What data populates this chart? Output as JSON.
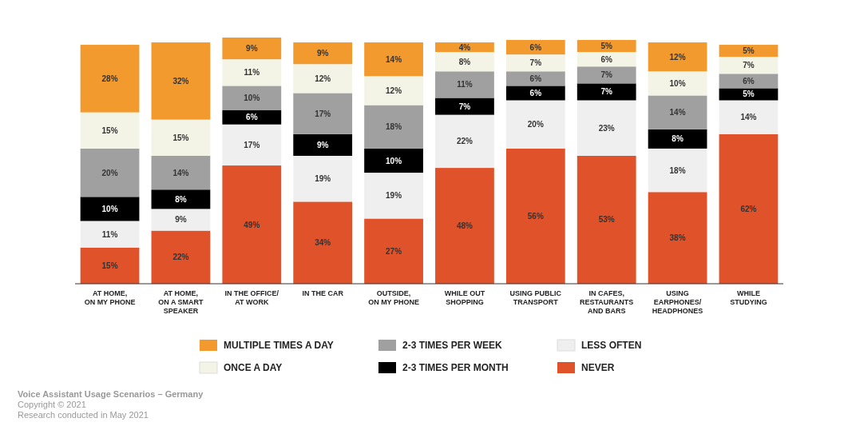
{
  "chart_data": {
    "type": "bar",
    "stacked": true,
    "legend": "bottom",
    "ylim": [
      0,
      102
    ],
    "tick_labels": "x",
    "categories": [
      "AT HOME,\nON MY PHONE",
      "AT HOME,\nON A SMART\nSPEAKER",
      "IN THE OFFICE/\nAT WORK",
      "IN THE CAR",
      "OUTSIDE,\nON MY PHONE",
      "WHILE OUT\nSHOPPING",
      "USING PUBLIC\nTRANSPORT",
      "IN CAFES,\nRESTAURANTS\nAND BARS",
      "USING\nEARPHONES/\nHEADPHONES",
      "WHILE\nSTUDYING"
    ],
    "series": [
      {
        "name": "NEVER",
        "color": "#e0522a",
        "values": [
          15,
          22,
          49,
          34,
          27,
          48,
          56,
          53,
          38,
          62
        ],
        "value_labels": [
          "15%",
          "22%",
          "49%",
          "34%",
          "27%",
          "48%",
          "56%",
          "53%",
          "38%",
          "62%"
        ]
      },
      {
        "name": "LESS OFTEN",
        "color": "#efefef",
        "values": [
          11,
          9,
          17,
          19,
          19,
          22,
          20,
          23,
          18,
          14
        ],
        "value_labels": [
          "11%",
          "9%",
          "17%",
          "19%",
          "19%",
          "22%",
          "20%",
          "23%",
          "18%",
          "14%"
        ]
      },
      {
        "name": "2-3 TIMES PER MONTH",
        "color": "#000000",
        "values": [
          10,
          8,
          6,
          9,
          10,
          7,
          6,
          7,
          8,
          5
        ],
        "value_labels": [
          "10%",
          "8%",
          "6%",
          "9%",
          "10%",
          "7%",
          "6%",
          "7%",
          "8%",
          "5%"
        ]
      },
      {
        "name": "2-3 TIMES PER WEEK",
        "color": "#a0a0a0",
        "values": [
          20,
          14,
          10,
          17,
          18,
          11,
          6,
          7,
          14,
          6
        ],
        "value_labels": [
          "20%",
          "14%",
          "10%",
          "17%",
          "18%",
          "11%",
          "6%",
          "7%",
          "14%",
          "6%"
        ]
      },
      {
        "name": "ONCE A DAY",
        "color": "#f3f3e6",
        "values": [
          15,
          15,
          11,
          12,
          12,
          8,
          7,
          6,
          10,
          7
        ],
        "value_labels": [
          "15%",
          "15%",
          "11%",
          "12%",
          "12%",
          "8%",
          "7%",
          "6%",
          "10%",
          "7%"
        ]
      },
      {
        "name": "MULTIPLE TIMES A DAY",
        "color": "#f39a2e",
        "values": [
          28,
          32,
          9,
          9,
          14,
          4,
          6,
          5,
          12,
          5
        ],
        "value_labels": [
          "28%",
          "32%",
          "9%",
          "9%",
          "14%",
          "4%",
          "6%",
          "5%",
          "12%",
          "5%"
        ]
      }
    ],
    "annotations": [
      "Voice Assistant Usage Scenarios – Germany",
      "Copyright © 2021",
      "Research conducted in May 2021"
    ]
  }
}
